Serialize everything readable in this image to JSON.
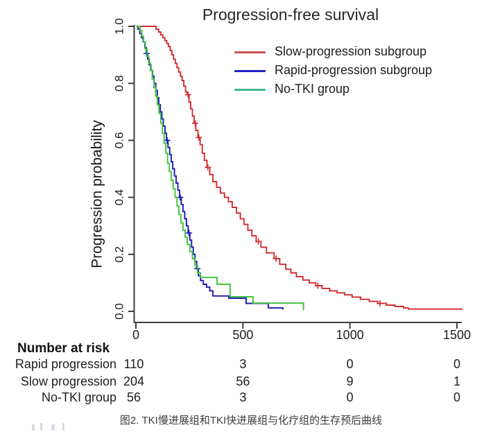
{
  "title": "Progression-free survival",
  "caption": "图2. TKI慢进展组和TKI快进展组与化疗组的生存预后曲线",
  "axis_color": "#3d3d3d",
  "chart_data": {
    "type": "line",
    "subtype": "kaplan-meier-step",
    "title": "Progression-free survival",
    "xlabel": "",
    "ylabel": "Progression probability",
    "xlim": [
      0,
      1560
    ],
    "ylim": [
      0.0,
      1.0
    ],
    "grid": false,
    "legend_position": "top-right",
    "x_ticks": {
      "values": [
        0,
        500,
        1000,
        1500
      ],
      "labels": [
        "0",
        "500",
        "1000",
        "1500"
      ]
    },
    "y_ticks": {
      "values": [
        0.0,
        0.2,
        0.4,
        0.6,
        0.8,
        1.0
      ],
      "labels": [
        "0.0",
        "0.2",
        "0.4",
        "0.6",
        "0.8",
        "1.0"
      ]
    },
    "series": [
      {
        "name": "Slow-progression subgroup",
        "color": "#d22b2e",
        "legend_color": "#c65250",
        "steps": [
          [
            0,
            1.0
          ],
          [
            94,
            0.99
          ],
          [
            106,
            0.98
          ],
          [
            116,
            0.97
          ],
          [
            126,
            0.96
          ],
          [
            135,
            0.95
          ],
          [
            144,
            0.94
          ],
          [
            152,
            0.93
          ],
          [
            160,
            0.915
          ],
          [
            168,
            0.9
          ],
          [
            176,
            0.885
          ],
          [
            184,
            0.87
          ],
          [
            192,
            0.855
          ],
          [
            200,
            0.84
          ],
          [
            208,
            0.825
          ],
          [
            216,
            0.81
          ],
          [
            224,
            0.79
          ],
          [
            232,
            0.77
          ],
          [
            240,
            0.76
          ],
          [
            248,
            0.735
          ],
          [
            256,
            0.71
          ],
          [
            264,
            0.685
          ],
          [
            272,
            0.66
          ],
          [
            280,
            0.635
          ],
          [
            290,
            0.61
          ],
          [
            300,
            0.585
          ],
          [
            310,
            0.555
          ],
          [
            320,
            0.53
          ],
          [
            332,
            0.505
          ],
          [
            345,
            0.48
          ],
          [
            360,
            0.455
          ],
          [
            377,
            0.435
          ],
          [
            395,
            0.415
          ],
          [
            414,
            0.4
          ],
          [
            432,
            0.385
          ],
          [
            450,
            0.365
          ],
          [
            470,
            0.345
          ],
          [
            488,
            0.325
          ],
          [
            505,
            0.305
          ],
          [
            523,
            0.285
          ],
          [
            542,
            0.265
          ],
          [
            562,
            0.245
          ],
          [
            584,
            0.225
          ],
          [
            610,
            0.205
          ],
          [
            646,
            0.185
          ],
          [
            672,
            0.165
          ],
          [
            700,
            0.148
          ],
          [
            724,
            0.135
          ],
          [
            750,
            0.122
          ],
          [
            780,
            0.11
          ],
          [
            810,
            0.1
          ],
          [
            840,
            0.09
          ],
          [
            870,
            0.08
          ],
          [
            905,
            0.072
          ],
          [
            940,
            0.065
          ],
          [
            975,
            0.058
          ],
          [
            1010,
            0.05
          ],
          [
            1050,
            0.042
          ],
          [
            1090,
            0.035
          ],
          [
            1130,
            0.028
          ],
          [
            1170,
            0.022
          ],
          [
            1210,
            0.017
          ],
          [
            1250,
            0.012
          ],
          [
            1273,
            0.008
          ]
        ],
        "censors": [
          [
            244,
            0.76
          ],
          [
            277,
            0.66
          ],
          [
            294,
            0.61
          ],
          [
            336,
            0.505
          ],
          [
            572,
            0.245
          ],
          [
            655,
            0.185
          ],
          [
            850,
            0.09
          ],
          [
            1140,
            0.028
          ]
        ],
        "end_time": 1522,
        "end_drop": 0.004
      },
      {
        "name": "Rapid-progression subgroup",
        "color": "#1b18b5",
        "legend_color": "#2222c0",
        "steps": [
          [
            0,
            1.0
          ],
          [
            10,
            0.99
          ],
          [
            18,
            0.975
          ],
          [
            26,
            0.96
          ],
          [
            34,
            0.945
          ],
          [
            42,
            0.925
          ],
          [
            49,
            0.905
          ],
          [
            55,
            0.885
          ],
          [
            62,
            0.865
          ],
          [
            70,
            0.845
          ],
          [
            78,
            0.825
          ],
          [
            85,
            0.8
          ],
          [
            93,
            0.775
          ],
          [
            100,
            0.75
          ],
          [
            107,
            0.725
          ],
          [
            114,
            0.7
          ],
          [
            121,
            0.675
          ],
          [
            128,
            0.65
          ],
          [
            136,
            0.625
          ],
          [
            143,
            0.6
          ],
          [
            150,
            0.575
          ],
          [
            158,
            0.55
          ],
          [
            165,
            0.525
          ],
          [
            172,
            0.5
          ],
          [
            180,
            0.475
          ],
          [
            188,
            0.45
          ],
          [
            196,
            0.425
          ],
          [
            204,
            0.4
          ],
          [
            212,
            0.375
          ],
          [
            220,
            0.35
          ],
          [
            228,
            0.325
          ],
          [
            236,
            0.3
          ],
          [
            244,
            0.275
          ],
          [
            252,
            0.25
          ],
          [
            260,
            0.225
          ],
          [
            268,
            0.2
          ],
          [
            276,
            0.175
          ],
          [
            284,
            0.15
          ],
          [
            292,
            0.125
          ],
          [
            302,
            0.108
          ],
          [
            315,
            0.095
          ],
          [
            330,
            0.085
          ],
          [
            345,
            0.072
          ],
          [
            360,
            0.054
          ],
          [
            434,
            0.046
          ],
          [
            515,
            0.028
          ],
          [
            619,
            0.012
          ]
        ],
        "censors": [
          [
            50,
            0.905
          ],
          [
            146,
            0.6
          ],
          [
            207,
            0.4
          ],
          [
            248,
            0.275
          ],
          [
            287,
            0.15
          ]
        ],
        "end_time": 687,
        "end_drop": 0.006
      },
      {
        "name": "No-TKI group",
        "color": "#3ec437",
        "legend_color": "#44b78c",
        "steps": [
          [
            0,
            1.0
          ],
          [
            20,
            0.985
          ],
          [
            28,
            0.965
          ],
          [
            36,
            0.945
          ],
          [
            44,
            0.92
          ],
          [
            52,
            0.895
          ],
          [
            60,
            0.87
          ],
          [
            68,
            0.845
          ],
          [
            76,
            0.815
          ],
          [
            84,
            0.785
          ],
          [
            92,
            0.755
          ],
          [
            100,
            0.725
          ],
          [
            108,
            0.695
          ],
          [
            116,
            0.66
          ],
          [
            124,
            0.625
          ],
          [
            132,
            0.59
          ],
          [
            140,
            0.555
          ],
          [
            148,
            0.52
          ],
          [
            156,
            0.49
          ],
          [
            165,
            0.46
          ],
          [
            174,
            0.43
          ],
          [
            183,
            0.4
          ],
          [
            192,
            0.37
          ],
          [
            201,
            0.34
          ],
          [
            210,
            0.31
          ],
          [
            220,
            0.285
          ],
          [
            230,
            0.26
          ],
          [
            240,
            0.235
          ],
          [
            252,
            0.21
          ],
          [
            264,
            0.185
          ],
          [
            276,
            0.16
          ],
          [
            288,
            0.135
          ],
          [
            302,
            0.119
          ],
          [
            379,
            0.095
          ],
          [
            440,
            0.051
          ],
          [
            547,
            0.029
          ]
        ],
        "censors": [],
        "end_time": 783,
        "end_drop": 0.004
      }
    ]
  },
  "risk_table": {
    "header": "Number at risk",
    "time_points": [
      "0",
      "500",
      "1000",
      "1500"
    ],
    "rows": [
      {
        "label": "Rapid progression",
        "values": [
          "110",
          "3",
          "0",
          "0"
        ]
      },
      {
        "label": "Slow progression",
        "values": [
          "204",
          "56",
          "9",
          "1"
        ]
      },
      {
        "label": "No-TKI group",
        "values": [
          "56",
          "3",
          "0",
          "0"
        ]
      }
    ]
  }
}
